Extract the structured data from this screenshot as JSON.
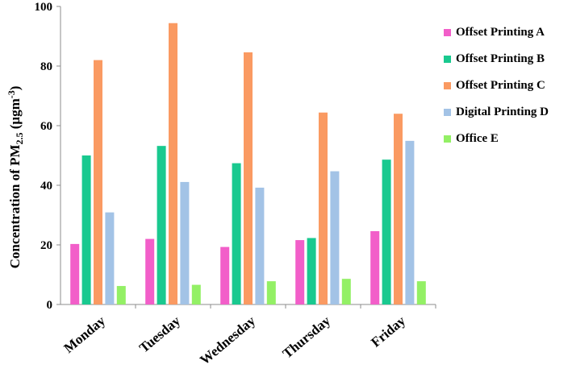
{
  "chart_data": {
    "type": "bar",
    "categories": [
      "Monday",
      "Tuesday",
      "Wednesday",
      "Thursday",
      "Friday"
    ],
    "series": [
      {
        "name": "Offset Printing A",
        "color": "#f25ec9",
        "values": [
          20.3,
          22.0,
          19.3,
          21.6,
          24.6
        ]
      },
      {
        "name": "Offset Printing B",
        "color": "#19c98f",
        "values": [
          50.0,
          53.2,
          47.4,
          22.3,
          48.6
        ]
      },
      {
        "name": "Offset Printing C",
        "color": "#fa9a62",
        "values": [
          82.0,
          94.4,
          84.6,
          64.4,
          64.0
        ]
      },
      {
        "name": "Digital Printing D",
        "color": "#a3c3e6",
        "values": [
          30.9,
          41.1,
          39.2,
          44.7,
          54.9
        ]
      },
      {
        "name": "Office E",
        "color": "#93f065",
        "values": [
          6.2,
          6.6,
          7.8,
          8.6,
          7.8
        ]
      }
    ],
    "ylabel_main": "Concentration of PM",
    "ylabel_sub": "2.5",
    "ylabel_unit_open": " (μgm",
    "ylabel_sup": "-3",
    "ylabel_unit_close": ")",
    "ylim": [
      0,
      100
    ],
    "yticks": [
      "0",
      "20",
      "40",
      "60",
      "80",
      "100"
    ],
    "grid": false,
    "legend_position": "right"
  }
}
